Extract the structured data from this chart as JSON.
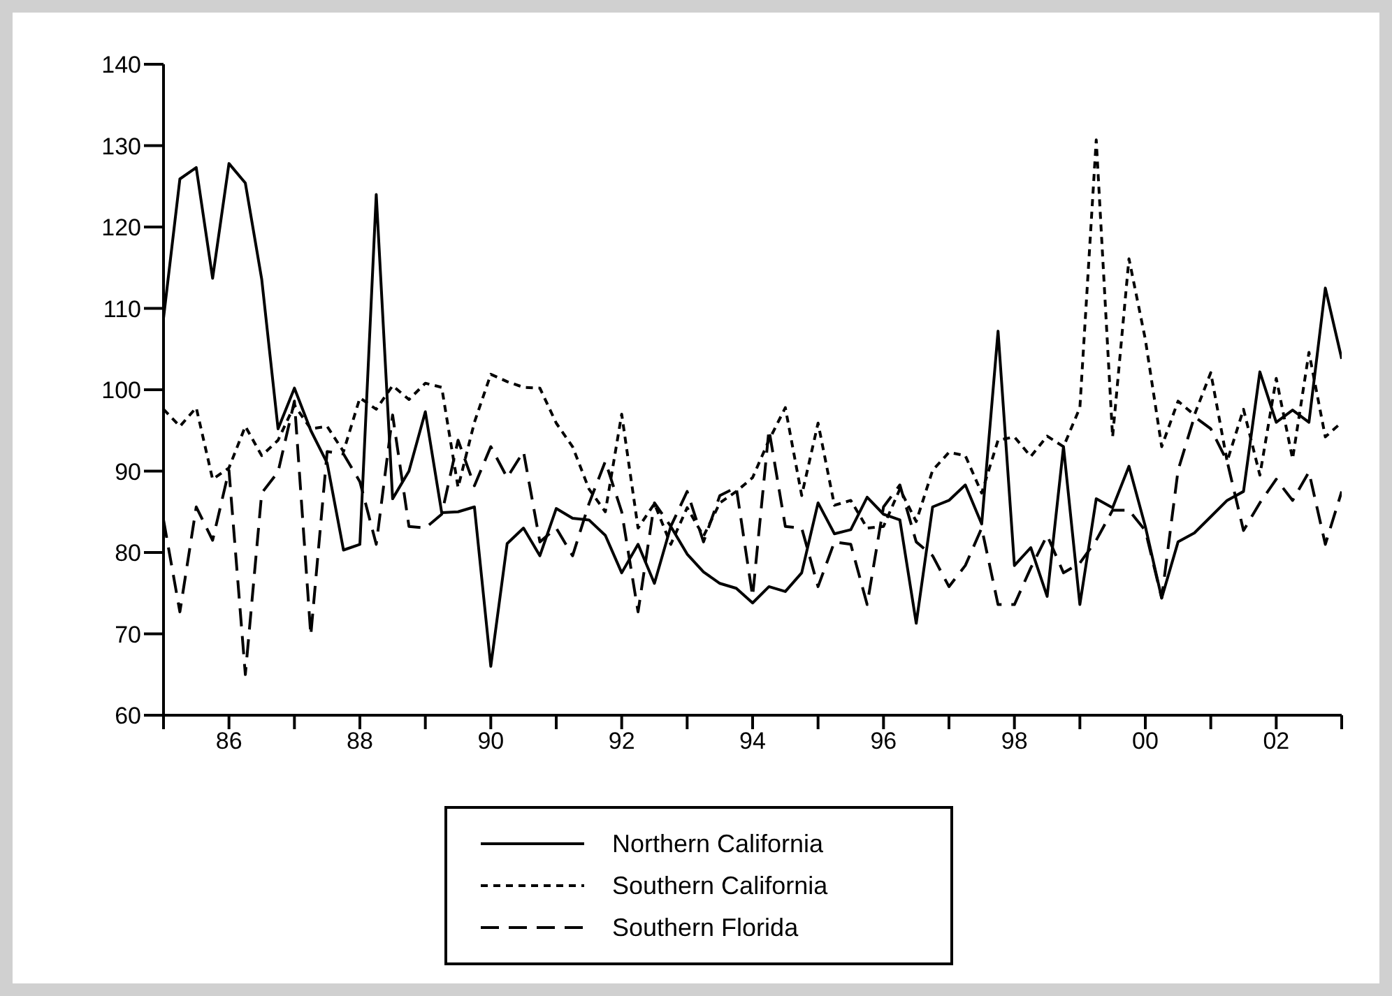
{
  "chart_data": {
    "type": "line",
    "x": [
      1985,
      1985.25,
      1985.5,
      1985.75,
      1986,
      1986.25,
      1986.5,
      1986.75,
      1987,
      1987.25,
      1987.5,
      1987.75,
      1988,
      1988.25,
      1988.5,
      1988.75,
      1989,
      1989.25,
      1989.5,
      1989.75,
      1990,
      1990.25,
      1990.5,
      1990.75,
      1991,
      1991.25,
      1991.5,
      1991.75,
      1992,
      1992.25,
      1992.5,
      1992.75,
      1993,
      1993.25,
      1993.5,
      1993.75,
      1994,
      1994.25,
      1994.5,
      1994.75,
      1995,
      1995.25,
      1995.5,
      1995.75,
      1996,
      1996.25,
      1996.5,
      1996.75,
      1997,
      1997.25,
      1997.5,
      1997.75,
      1998,
      1998.25,
      1998.5,
      1998.75,
      1999,
      1999.25,
      1999.5,
      1999.75,
      2000,
      2000.25,
      2000.5,
      2000.75,
      2001,
      2001.25,
      2001.5,
      2001.75,
      2002,
      2002.25,
      2002.5,
      2002.75,
      2003
    ],
    "series": [
      {
        "name": "Northern California",
        "color": "#000000",
        "line_style": "solid",
        "values": [
          108.8,
          125.9,
          127.3,
          113.7,
          127.8,
          125.4,
          113.6,
          95.2,
          100.2,
          95,
          91,
          80.3,
          81,
          124,
          86.6,
          90,
          97.3,
          84.9,
          85,
          85.6,
          66,
          81.1,
          83,
          79.6,
          85.4,
          84.2,
          84,
          82.1,
          77.5,
          81,
          76.2,
          83.2,
          79.8,
          77.6,
          76.2,
          75.6,
          73.8,
          75.8,
          75.2,
          77.5,
          86.1,
          82.3,
          82.8,
          86.8,
          84.7,
          84,
          71.3,
          85.6,
          86.4,
          88.3,
          83.5,
          107.2,
          78.4,
          80.6,
          74.6,
          93,
          73.6,
          86.6,
          85.5,
          90.6,
          83.2,
          74.4,
          81.3,
          82.4,
          84.4,
          86.4,
          87.5,
          102.2,
          96,
          97.5,
          96,
          112.5,
          103.8
        ]
      },
      {
        "name": "Southern California",
        "color": "#000000",
        "line_style": "dotted",
        "values": [
          97.6,
          95.5,
          97.8,
          89,
          90.4,
          95.5,
          91.9,
          93.8,
          98.1,
          95.2,
          95.5,
          92.4,
          99,
          97.6,
          100.5,
          98.8,
          100.8,
          100.3,
          88,
          96,
          101.9,
          101,
          100.3,
          100.2,
          95.9,
          93,
          87.8,
          85,
          97,
          83,
          86,
          81,
          85.5,
          82,
          86.1,
          87.5,
          89.2,
          93.8,
          97.8,
          87,
          95.9,
          85.8,
          86.4,
          83,
          83.2,
          87.8,
          83.8,
          90.1,
          92.3,
          91.9,
          87.3,
          93.8,
          94.2,
          91.8,
          94.3,
          93,
          97.8,
          130.7,
          94.2,
          116.1,
          106.2,
          93,
          98.6,
          96.9,
          102.1,
          91.2,
          97.6,
          89.5,
          101.4,
          91.5,
          104.6,
          94.2,
          96
        ]
      },
      {
        "name": "Southern Florida",
        "color": "#000000",
        "line_style": "dashed",
        "values": [
          84,
          72.7,
          85.6,
          81.5,
          90.1,
          65,
          87.3,
          89.9,
          98.6,
          69.8,
          92.4,
          92.1,
          88.7,
          81,
          96.9,
          83.2,
          83,
          84.7,
          93.8,
          88.2,
          93,
          89.2,
          92.4,
          81.3,
          83,
          79.6,
          86,
          91.2,
          85,
          72.7,
          86.1,
          83.2,
          87.5,
          81.3,
          87,
          88,
          74.6,
          95.1,
          83.2,
          83,
          75.8,
          81.3,
          81,
          73.6,
          85.6,
          88.3,
          81.3,
          79.6,
          75.8,
          78.4,
          83,
          73.6,
          73.6,
          78.1,
          82.1,
          77.5,
          78.7,
          81.5,
          85.2,
          85.2,
          82.7,
          74.4,
          90.1,
          96.7,
          95.2,
          91.2,
          82.7,
          86.1,
          89,
          86.4,
          89.9,
          81,
          87.5
        ]
      }
    ],
    "xlim": [
      1985,
      2003
    ],
    "xticks": [
      {
        "value": 1985,
        "label": null
      },
      {
        "value": 1986,
        "label": "86"
      },
      {
        "value": 1987,
        "label": null
      },
      {
        "value": 1988,
        "label": "88"
      },
      {
        "value": 1989,
        "label": null
      },
      {
        "value": 1990,
        "label": "90"
      },
      {
        "value": 1991,
        "label": null
      },
      {
        "value": 1992,
        "label": "92"
      },
      {
        "value": 1993,
        "label": null
      },
      {
        "value": 1994,
        "label": "94"
      },
      {
        "value": 1995,
        "label": null
      },
      {
        "value": 1996,
        "label": "96"
      },
      {
        "value": 1997,
        "label": null
      },
      {
        "value": 1998,
        "label": "98"
      },
      {
        "value": 1999,
        "label": null
      },
      {
        "value": 2000,
        "label": "00"
      },
      {
        "value": 2001,
        "label": null
      },
      {
        "value": 2002,
        "label": "02"
      },
      {
        "value": 2003,
        "label": null
      }
    ],
    "ylim": [
      60,
      140
    ],
    "yticks": [
      60,
      70,
      80,
      90,
      100,
      110,
      120,
      130,
      140
    ],
    "legend": "bottom"
  }
}
